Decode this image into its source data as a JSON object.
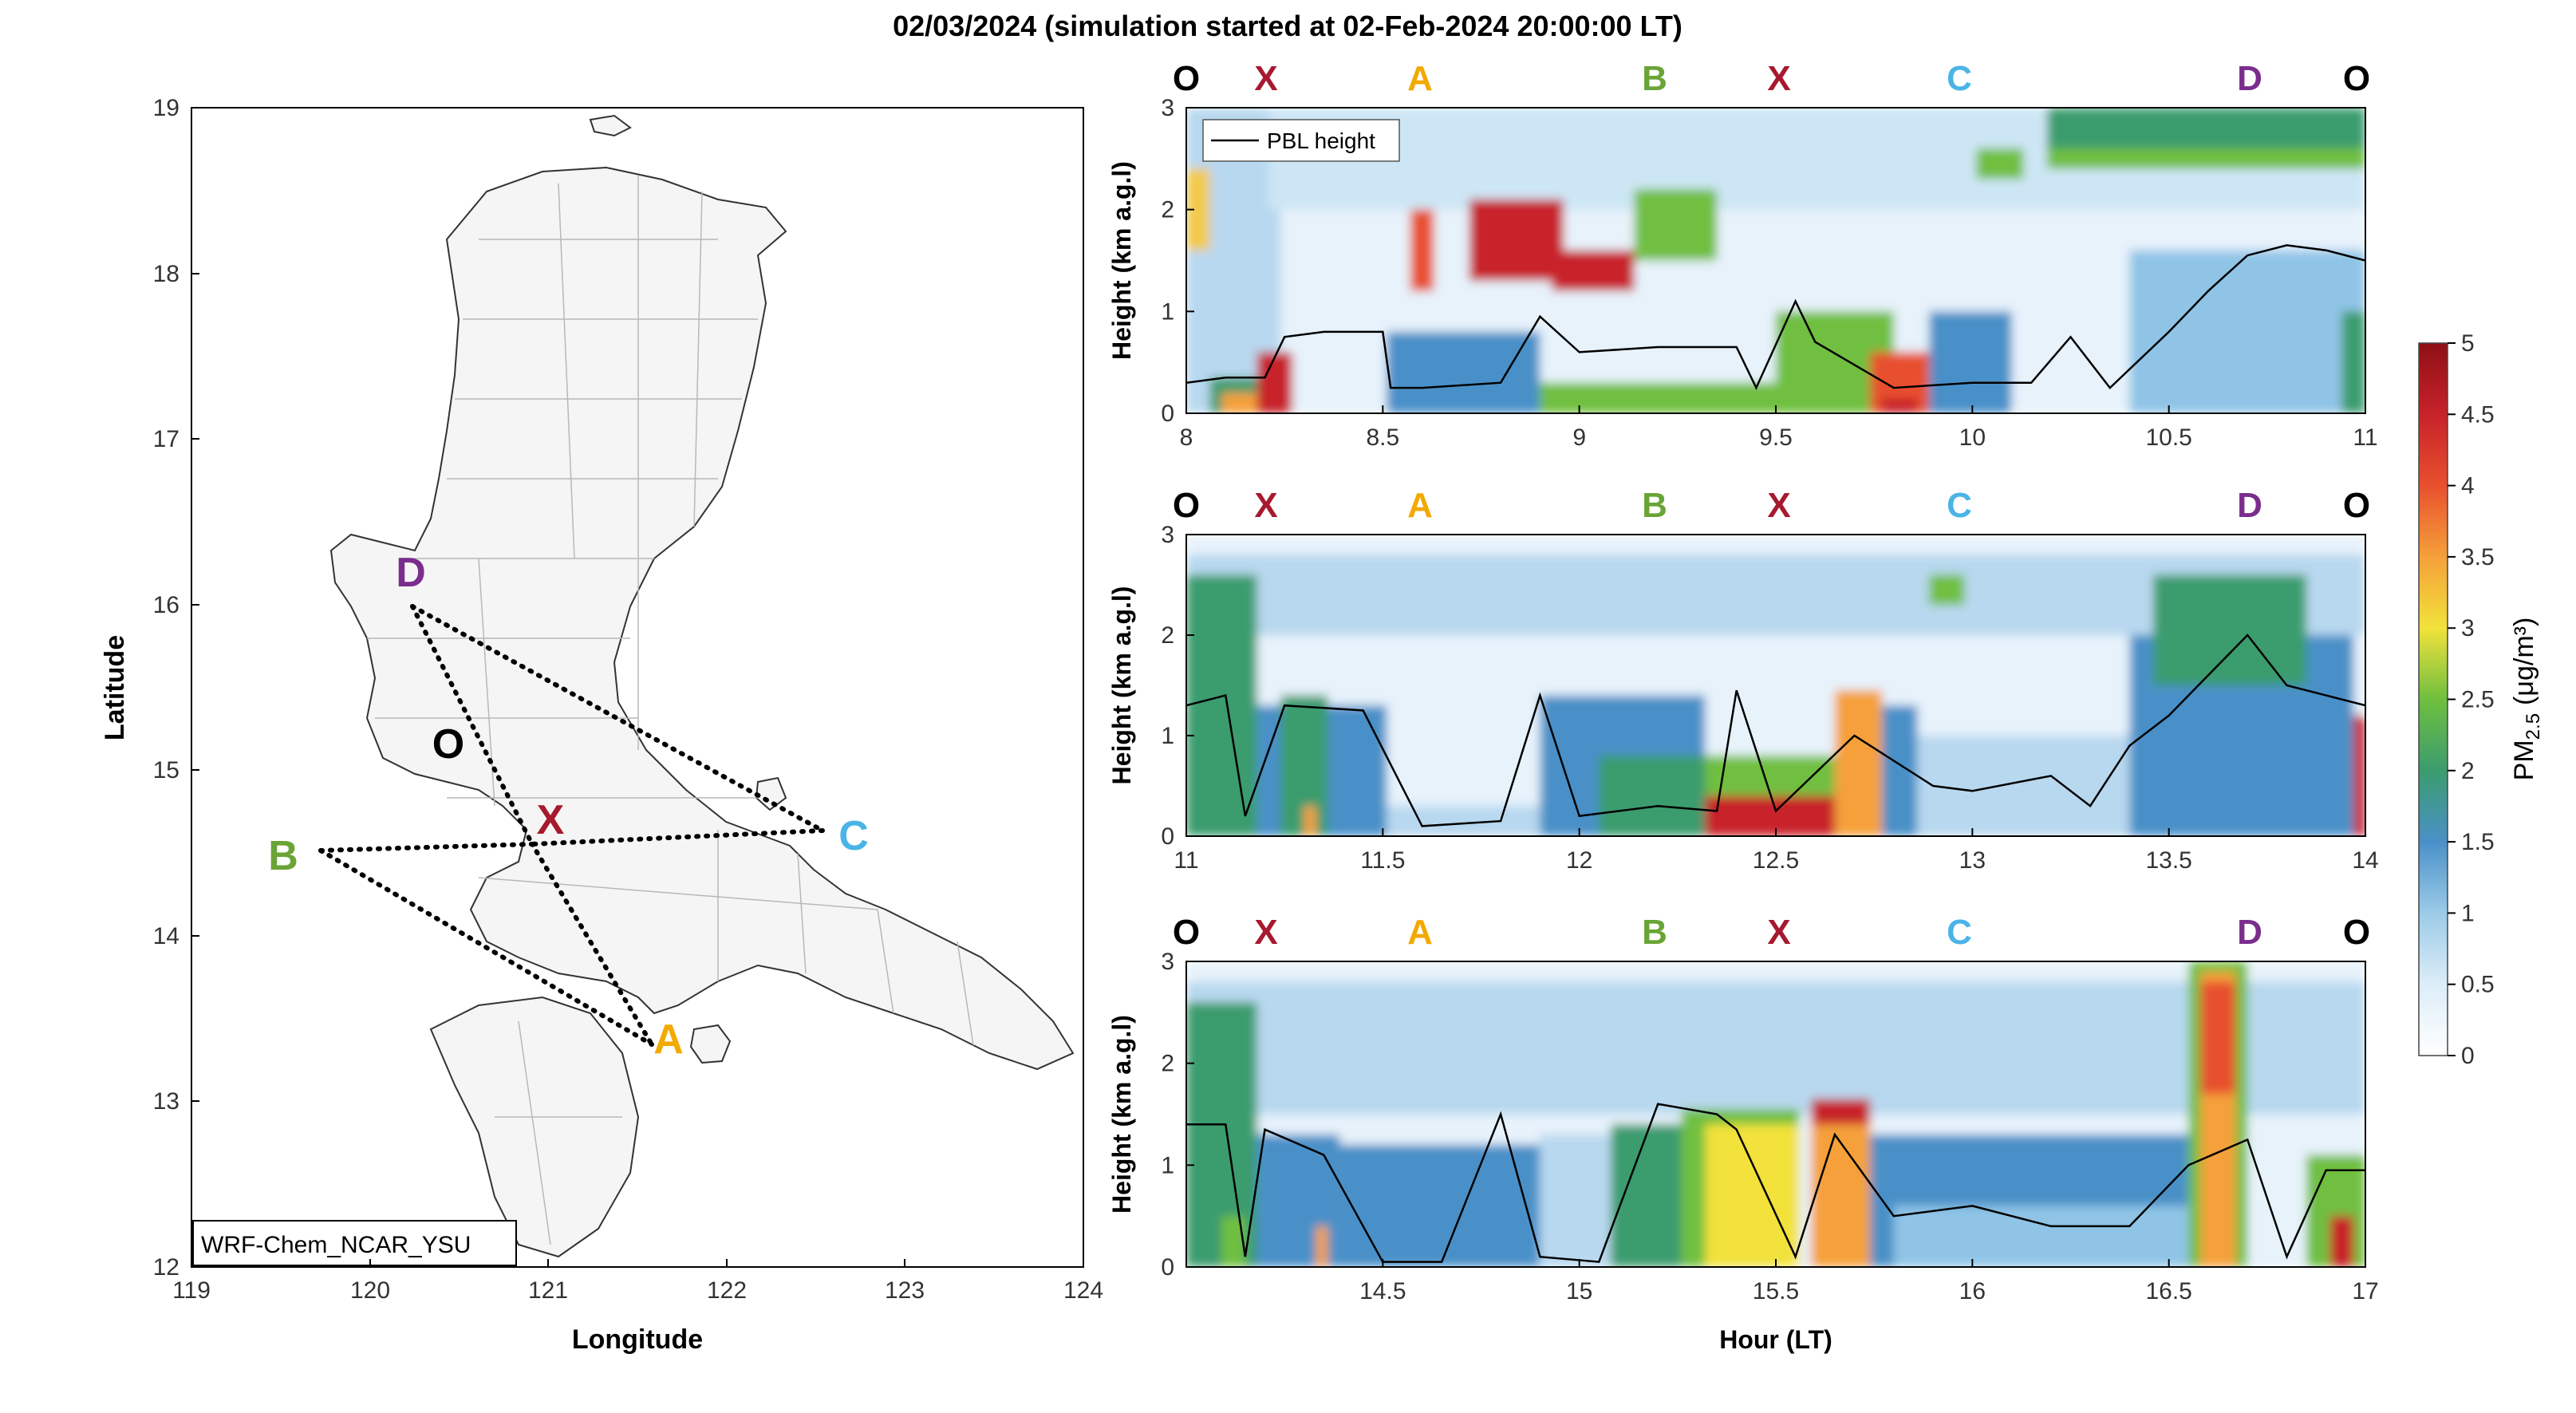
{
  "figure": {
    "title": "02/03/2024 (simulation started at 02-Feb-2024 20:00:00 LT)"
  },
  "colorbar": {
    "label_main": "PM",
    "label_sub": "2.5",
    "label_unit": "(μg/m³)",
    "ticks": [
      "0",
      "0.5",
      "1",
      "1.5",
      "2",
      "2.5",
      "3",
      "3.5",
      "4",
      "4.5",
      "5"
    ]
  },
  "map": {
    "xlabel": "Longitude",
    "ylabel": "Latitude",
    "xticks": [
      "119",
      "120",
      "121",
      "122",
      "123",
      "124"
    ],
    "yticks": [
      "12",
      "13",
      "14",
      "15",
      "16",
      "17",
      "18",
      "19"
    ],
    "model_label": "WRF-Chem_NCAR_YSU",
    "points": [
      {
        "label": "D",
        "lon": 120.2,
        "lat": 16.05,
        "color": "#7b2d8e"
      },
      {
        "label": "O",
        "lon": 120.5,
        "lat": 15.2,
        "color": "#000000"
      },
      {
        "label": "X",
        "lon": 121.0,
        "lat": 14.58,
        "color": "#a6192e"
      },
      {
        "label": "B",
        "lon": 119.7,
        "lat": 14.52,
        "color": "#6aa436"
      },
      {
        "label": "C",
        "lon": 122.55,
        "lat": 14.65,
        "color": "#4ab4e6"
      },
      {
        "label": "A",
        "lon": 121.65,
        "lat": 13.4,
        "color": "#f2a900"
      }
    ]
  },
  "panels": {
    "ylabel": "Height (km a.g.l)",
    "xlabel": "Hour (LT)",
    "legend_label": "PBL height",
    "site_labels": [
      {
        "label": "O",
        "color": "#000000"
      },
      {
        "label": "X",
        "color": "#a6192e"
      },
      {
        "label": "A",
        "color": "#f2a900"
      },
      {
        "label": "B",
        "color": "#6aa436"
      },
      {
        "label": "X",
        "color": "#a6192e"
      },
      {
        "label": "C",
        "color": "#4ab4e6"
      },
      {
        "label": "D",
        "color": "#7b2d8e"
      },
      {
        "label": "O",
        "color": "#000000"
      }
    ]
  },
  "chart_data": [
    {
      "type": "heatmap",
      "title": "",
      "xlabel": "",
      "ylabel": "Height (km a.g.l)",
      "xlim": [
        8,
        11
      ],
      "ylim": [
        0,
        3
      ],
      "xticks": [
        "8",
        "8.5",
        "9",
        "9.5",
        "10",
        "10.5",
        "11"
      ],
      "yticks": [
        "0",
        "1",
        "2",
        "3"
      ],
      "series": [
        {
          "name": "PBL height",
          "x": [
            8.0,
            8.1,
            8.2,
            8.25,
            8.35,
            8.5,
            8.52,
            8.6,
            8.8,
            8.9,
            9.0,
            9.2,
            9.4,
            9.45,
            9.55,
            9.6,
            9.8,
            10.0,
            10.15,
            10.25,
            10.35,
            10.5,
            10.6,
            10.7,
            10.8,
            10.9,
            11.0
          ],
          "y": [
            0.3,
            0.35,
            0.35,
            0.75,
            0.8,
            0.8,
            0.25,
            0.25,
            0.3,
            0.95,
            0.6,
            0.65,
            0.65,
            0.25,
            1.1,
            0.7,
            0.25,
            0.3,
            0.3,
            0.75,
            0.25,
            0.8,
            1.2,
            1.55,
            1.65,
            1.6,
            1.5
          ]
        }
      ]
    },
    {
      "type": "heatmap",
      "title": "",
      "xlabel": "",
      "ylabel": "Height (km a.g.l)",
      "xlim": [
        11,
        14
      ],
      "ylim": [
        0,
        3
      ],
      "xticks": [
        "11",
        "11.5",
        "12",
        "12.5",
        "13",
        "13.5",
        "14"
      ],
      "yticks": [
        "0",
        "1",
        "2",
        "3"
      ],
      "series": [
        {
          "name": "PBL height",
          "x": [
            11.0,
            11.1,
            11.15,
            11.25,
            11.45,
            11.6,
            11.8,
            11.9,
            12.0,
            12.2,
            12.35,
            12.4,
            12.5,
            12.7,
            12.9,
            13.0,
            13.2,
            13.3,
            13.4,
            13.5,
            13.7,
            13.8,
            13.9,
            14.0
          ],
          "y": [
            1.3,
            1.4,
            0.2,
            1.3,
            1.25,
            0.1,
            0.15,
            1.4,
            0.2,
            0.3,
            0.25,
            1.45,
            0.25,
            1.0,
            0.5,
            0.45,
            0.6,
            0.3,
            0.9,
            1.2,
            2.0,
            1.5,
            1.4,
            1.3
          ]
        }
      ]
    },
    {
      "type": "heatmap",
      "title": "",
      "xlabel": "Hour (LT)",
      "ylabel": "Height (km a.g.l)",
      "xlim": [
        14,
        17
      ],
      "ylim": [
        0,
        3
      ],
      "xticks": [
        "14.5",
        "15",
        "15.5",
        "16",
        "16.5",
        "17"
      ],
      "yticks": [
        "0",
        "1",
        "2",
        "3"
      ],
      "series": [
        {
          "name": "PBL height",
          "x": [
            14.0,
            14.1,
            14.15,
            14.2,
            14.35,
            14.5,
            14.65,
            14.8,
            14.9,
            15.05,
            15.2,
            15.35,
            15.4,
            15.55,
            15.65,
            15.8,
            16.0,
            16.2,
            16.4,
            16.55,
            16.7,
            16.8,
            16.9,
            17.0
          ],
          "y": [
            1.4,
            1.4,
            0.1,
            1.35,
            1.1,
            0.05,
            0.05,
            1.5,
            0.1,
            0.05,
            1.6,
            1.5,
            1.35,
            0.1,
            1.3,
            0.5,
            0.6,
            0.4,
            0.4,
            1.0,
            1.25,
            0.1,
            0.95,
            0.95
          ]
        }
      ]
    }
  ]
}
